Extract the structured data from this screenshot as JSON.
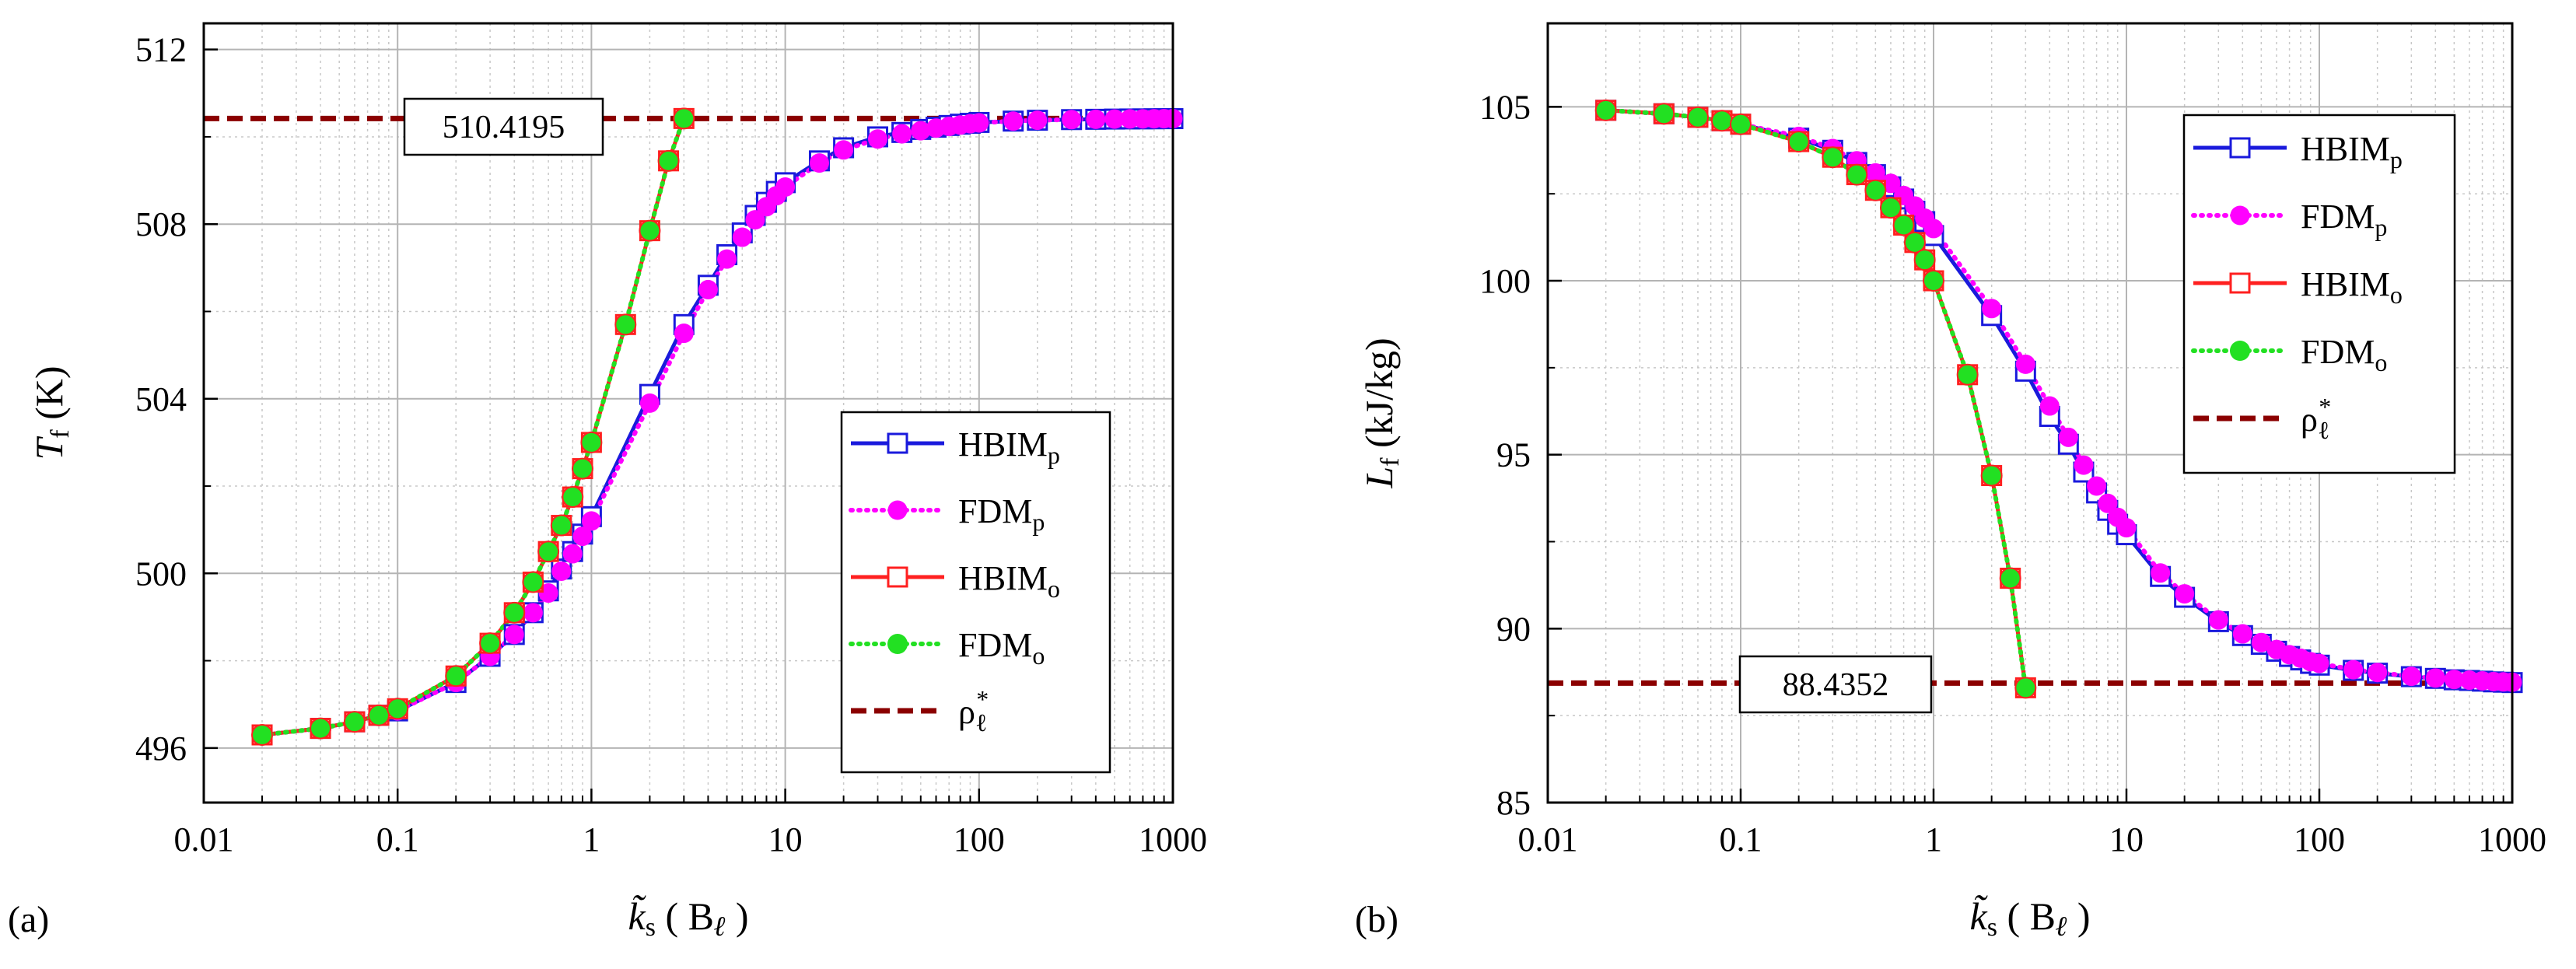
{
  "chart_data": [
    {
      "id": "a",
      "type": "line",
      "panel_label": "(a)",
      "xscale": "log",
      "xlim": [
        0.01,
        1000
      ],
      "ylim": [
        494.75,
        512.6
      ],
      "xticks": [
        0.01,
        0.1,
        1,
        10,
        100,
        1000
      ],
      "xtick_labels": [
        "0.01",
        "0.1",
        "1",
        "10",
        "100",
        "1000"
      ],
      "yticks": [
        496,
        500,
        504,
        508,
        512
      ],
      "ytick_labels": [
        "496",
        "500",
        "504",
        "508",
        "512"
      ],
      "ylabel_symbol": "T",
      "ylabel_sub": "f",
      "ylabel_unit": "(K)",
      "xlabel_symbol": "k̃",
      "xlabel_sub": "s",
      "xlabel_unit": "( B",
      "xlabel_unit_sub": "ℓ",
      "xlabel_close": ")",
      "reference": {
        "value": 510.4195,
        "label": "510.4195"
      },
      "legend": [
        {
          "text": "HBIM",
          "sub": "p"
        },
        {
          "text": "FDM",
          "sub": "p"
        },
        {
          "text": "HBIM",
          "sub": "o"
        },
        {
          "text": "FDM",
          "sub": "o"
        },
        {
          "text": "ρ",
          "sub": "ℓ",
          "sup": "*"
        }
      ],
      "series": [
        {
          "name": "HBIM_p",
          "color": "#1a1adc",
          "style": "solid",
          "marker": "square-open",
          "x": [
            0.02,
            0.04,
            0.06,
            0.08,
            0.1,
            0.2,
            0.3,
            0.4,
            0.5,
            0.6,
            0.7,
            0.8,
            0.9,
            1,
            2,
            3,
            4,
            5,
            6,
            7,
            8,
            9,
            10,
            15,
            20,
            30,
            40,
            50,
            60,
            70,
            80,
            90,
            100,
            150,
            200,
            300,
            400,
            500,
            600,
            700,
            800,
            900,
            1000
          ],
          "y": [
            496.3,
            496.45,
            496.6,
            496.75,
            496.85,
            497.5,
            498.1,
            498.6,
            499.1,
            499.6,
            500.1,
            500.5,
            500.9,
            501.3,
            504.1,
            505.7,
            506.6,
            507.3,
            507.8,
            508.2,
            508.5,
            508.75,
            508.95,
            509.45,
            509.75,
            510.0,
            510.1,
            510.17,
            510.22,
            510.26,
            510.29,
            510.31,
            510.33,
            510.36,
            510.38,
            510.395,
            510.402,
            510.407,
            510.41,
            510.412,
            510.414,
            510.416,
            510.417
          ]
        },
        {
          "name": "FDM_p",
          "color": "#ff00ff",
          "style": "dotted",
          "marker": "circle-filled",
          "x": [
            0.02,
            0.04,
            0.06,
            0.08,
            0.1,
            0.2,
            0.3,
            0.4,
            0.5,
            0.6,
            0.7,
            0.8,
            0.9,
            1,
            2,
            3,
            4,
            5,
            6,
            7,
            8,
            9,
            10,
            15,
            20,
            30,
            40,
            50,
            60,
            70,
            80,
            90,
            100,
            150,
            200,
            300,
            400,
            500,
            600,
            700,
            800,
            900,
            1000
          ],
          "y": [
            496.3,
            496.45,
            496.6,
            496.75,
            496.85,
            497.5,
            498.1,
            498.6,
            499.1,
            499.55,
            500.05,
            500.45,
            500.85,
            501.2,
            503.9,
            505.5,
            506.5,
            507.2,
            507.7,
            508.1,
            508.4,
            508.65,
            508.85,
            509.4,
            509.7,
            509.95,
            510.07,
            510.14,
            510.2,
            510.24,
            510.27,
            510.3,
            510.32,
            510.36,
            510.38,
            510.395,
            510.402,
            510.407,
            510.41,
            510.412,
            510.414,
            510.416,
            510.417
          ]
        },
        {
          "name": "HBIM_o",
          "color": "#ff2020",
          "style": "solid",
          "marker": "square-open",
          "x": [
            0.02,
            0.04,
            0.06,
            0.08,
            0.1,
            0.2,
            0.3,
            0.4,
            0.5,
            0.6,
            0.7,
            0.8,
            0.9,
            1,
            1.5,
            2,
            2.5,
            3
          ],
          "y": [
            496.3,
            496.45,
            496.6,
            496.75,
            496.9,
            497.65,
            498.4,
            499.1,
            499.8,
            500.5,
            501.1,
            501.75,
            502.4,
            503.0,
            505.7,
            507.85,
            509.45,
            510.42
          ]
        },
        {
          "name": "FDM_o",
          "color": "#22e022",
          "style": "dotted",
          "marker": "circle-filled-square",
          "x": [
            0.02,
            0.04,
            0.06,
            0.08,
            0.1,
            0.2,
            0.3,
            0.4,
            0.5,
            0.6,
            0.7,
            0.8,
            0.9,
            1,
            1.5,
            2,
            2.5,
            3
          ],
          "y": [
            496.3,
            496.45,
            496.6,
            496.75,
            496.9,
            497.65,
            498.4,
            499.1,
            499.8,
            500.5,
            501.1,
            501.75,
            502.4,
            503.0,
            505.7,
            507.85,
            509.45,
            510.42
          ]
        }
      ]
    },
    {
      "id": "b",
      "type": "line",
      "panel_label": "(b)",
      "xscale": "log",
      "xlim": [
        0.01,
        1000
      ],
      "ylim": [
        85,
        107.4
      ],
      "xticks": [
        0.01,
        0.1,
        1,
        10,
        100,
        1000
      ],
      "xtick_labels": [
        "0.01",
        "0.1",
        "1",
        "10",
        "100",
        "1000"
      ],
      "yticks": [
        85,
        90,
        95,
        100,
        105
      ],
      "ytick_labels": [
        "85",
        "90",
        "95",
        "100",
        "105"
      ],
      "ylabel_symbol": "L",
      "ylabel_sub": "f",
      "ylabel_unit": "(kJ/kg)",
      "xlabel_symbol": "k̃",
      "xlabel_sub": "s",
      "xlabel_unit": "( B",
      "xlabel_unit_sub": "ℓ",
      "xlabel_close": ")",
      "reference": {
        "value": 88.4352,
        "label": "88.4352"
      },
      "legend": [
        {
          "text": "HBIM",
          "sub": "p"
        },
        {
          "text": "FDM",
          "sub": "p"
        },
        {
          "text": "HBIM",
          "sub": "o"
        },
        {
          "text": "FDM",
          "sub": "o"
        },
        {
          "text": "ρ",
          "sub": "ℓ",
          "sup": "*"
        }
      ],
      "series": [
        {
          "name": "HBIM_p",
          "color": "#1a1adc",
          "style": "solid",
          "marker": "square-open",
          "x": [
            0.02,
            0.04,
            0.06,
            0.08,
            0.1,
            0.2,
            0.3,
            0.4,
            0.5,
            0.6,
            0.7,
            0.8,
            0.9,
            1,
            2,
            3,
            4,
            5,
            6,
            7,
            8,
            9,
            10,
            15,
            20,
            30,
            40,
            50,
            60,
            70,
            80,
            90,
            100,
            150,
            200,
            300,
            400,
            500,
            600,
            700,
            800,
            900,
            1000
          ],
          "y": [
            104.9,
            104.8,
            104.7,
            104.6,
            104.5,
            104.1,
            103.75,
            103.4,
            103.05,
            102.7,
            102.35,
            102.0,
            101.7,
            101.3,
            99.0,
            97.4,
            96.1,
            95.3,
            94.5,
            93.9,
            93.4,
            93.0,
            92.7,
            91.5,
            90.9,
            90.2,
            89.8,
            89.55,
            89.35,
            89.2,
            89.1,
            89.0,
            88.95,
            88.8,
            88.72,
            88.62,
            88.57,
            88.53,
            88.51,
            88.49,
            88.47,
            88.46,
            88.45
          ]
        },
        {
          "name": "FDM_p",
          "color": "#ff00ff",
          "style": "dotted",
          "marker": "circle-filled",
          "x": [
            0.02,
            0.04,
            0.06,
            0.08,
            0.1,
            0.2,
            0.3,
            0.4,
            0.5,
            0.6,
            0.7,
            0.8,
            0.9,
            1,
            2,
            3,
            4,
            5,
            6,
            7,
            8,
            9,
            10,
            15,
            20,
            30,
            40,
            50,
            60,
            70,
            80,
            90,
            100,
            150,
            200,
            300,
            400,
            500,
            600,
            700,
            800,
            900,
            1000
          ],
          "y": [
            104.9,
            104.8,
            104.7,
            104.6,
            104.5,
            104.15,
            103.8,
            103.45,
            103.1,
            102.8,
            102.45,
            102.15,
            101.8,
            101.5,
            99.2,
            97.6,
            96.4,
            95.5,
            94.7,
            94.1,
            93.6,
            93.2,
            92.9,
            91.6,
            91.0,
            90.25,
            89.85,
            89.6,
            89.4,
            89.25,
            89.15,
            89.05,
            89.0,
            88.82,
            88.74,
            88.63,
            88.58,
            88.54,
            88.52,
            88.5,
            88.48,
            88.47,
            88.46
          ]
        },
        {
          "name": "HBIM_o",
          "color": "#ff2020",
          "style": "solid",
          "marker": "square-open",
          "x": [
            0.02,
            0.04,
            0.06,
            0.08,
            0.1,
            0.2,
            0.3,
            0.4,
            0.5,
            0.6,
            0.7,
            0.8,
            0.9,
            1,
            1.5,
            2,
            2.5,
            3
          ],
          "y": [
            104.9,
            104.8,
            104.7,
            104.6,
            104.5,
            104.0,
            103.55,
            103.05,
            102.6,
            102.1,
            101.6,
            101.1,
            100.6,
            100.0,
            97.3,
            94.4,
            91.45,
            88.3
          ]
        },
        {
          "name": "FDM_o",
          "color": "#22e022",
          "style": "dotted",
          "marker": "circle-filled-square",
          "x": [
            0.02,
            0.04,
            0.06,
            0.08,
            0.1,
            0.2,
            0.3,
            0.4,
            0.5,
            0.6,
            0.7,
            0.8,
            0.9,
            1,
            1.5,
            2,
            2.5,
            3
          ],
          "y": [
            104.9,
            104.8,
            104.7,
            104.6,
            104.5,
            104.0,
            103.55,
            103.05,
            102.6,
            102.1,
            101.6,
            101.1,
            100.6,
            100.0,
            97.3,
            94.4,
            91.45,
            88.3
          ]
        }
      ],
      "reference_color": "#8b0000"
    }
  ]
}
